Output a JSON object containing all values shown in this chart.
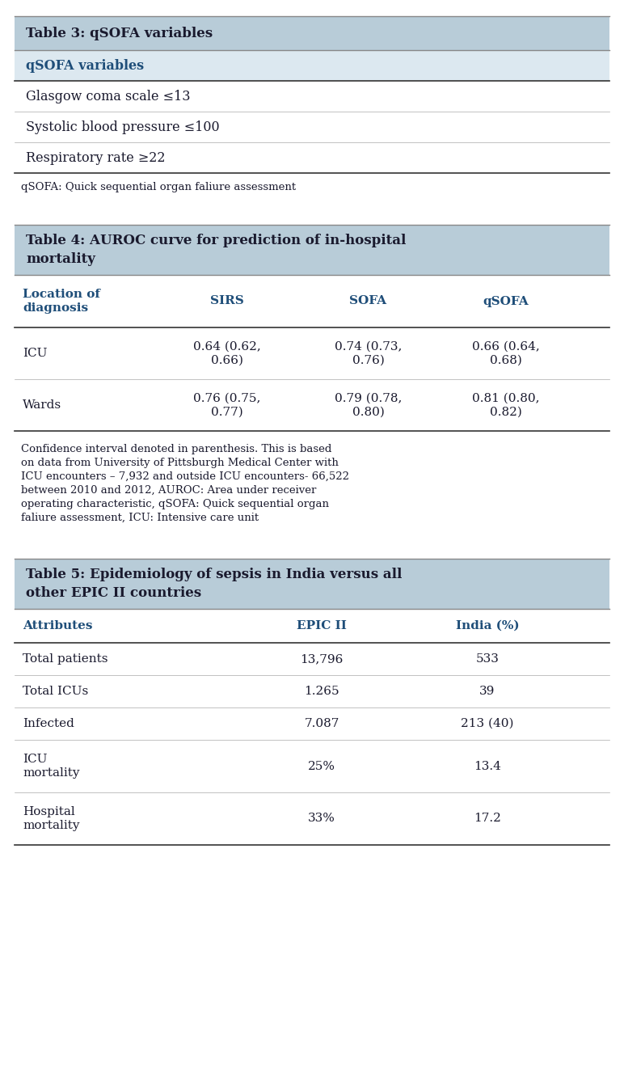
{
  "bg_color": "#ffffff",
  "header_bg": "#b8ccd8",
  "subheader_bg": "#dce8f0",
  "text_dark": "#1a1a2e",
  "text_blue": "#1f4e79",
  "row_bg_white": "#ffffff",
  "table3": {
    "title": "Table 3: qSOFA variables",
    "col_header": "qSOFA variables",
    "rows": [
      "Glasgow coma scale ≤13",
      "Systolic blood pressure ≤100",
      "Respiratory rate ≥22"
    ],
    "footnote": "qSOFA: Quick sequential organ faliure assessment"
  },
  "table4": {
    "title": "Table 4: AUROC curve for prediction of in-hospital\nmortality",
    "col_headers": [
      "Location of\ndiagnosis",
      "SIRS",
      "SOFA",
      "qSOFA"
    ],
    "rows": [
      [
        "ICU",
        "0.64 (0.62,\n0.66)",
        "0.74 (0.73,\n0.76)",
        "0.66 (0.64,\n0.68)"
      ],
      [
        "Wards",
        "0.76 (0.75,\n0.77)",
        "0.79 (0.78,\n0.80)",
        "0.81 (0.80,\n0.82)"
      ]
    ],
    "footnote": "Confidence interval denoted in parenthesis. This is based\non data from University of Pittsburgh Medical Center with\nICU encounters – 7,932 and outside ICU encounters- 66,522\nbetween 2010 and 2012, AUROC: Area under receiver\noperating characteristic, qSOFA: Quick sequential organ\nfaliure assessment, ICU: Intensive care unit"
  },
  "table5": {
    "title": "Table 5: Epidemiology of sepsis in India versus all\nother EPIC II countries",
    "col_headers": [
      "Attributes",
      "EPIC II",
      "India (%)"
    ],
    "rows": [
      [
        "Total patients",
        "13,796",
        "533"
      ],
      [
        "Total ICUs",
        "1.265",
        "39"
      ],
      [
        "Infected",
        "7.087",
        "213 (40)"
      ],
      [
        "ICU\nmortality",
        "25%",
        "13.4"
      ],
      [
        "Hospital\nmortality",
        "33%",
        "17.2"
      ]
    ]
  }
}
